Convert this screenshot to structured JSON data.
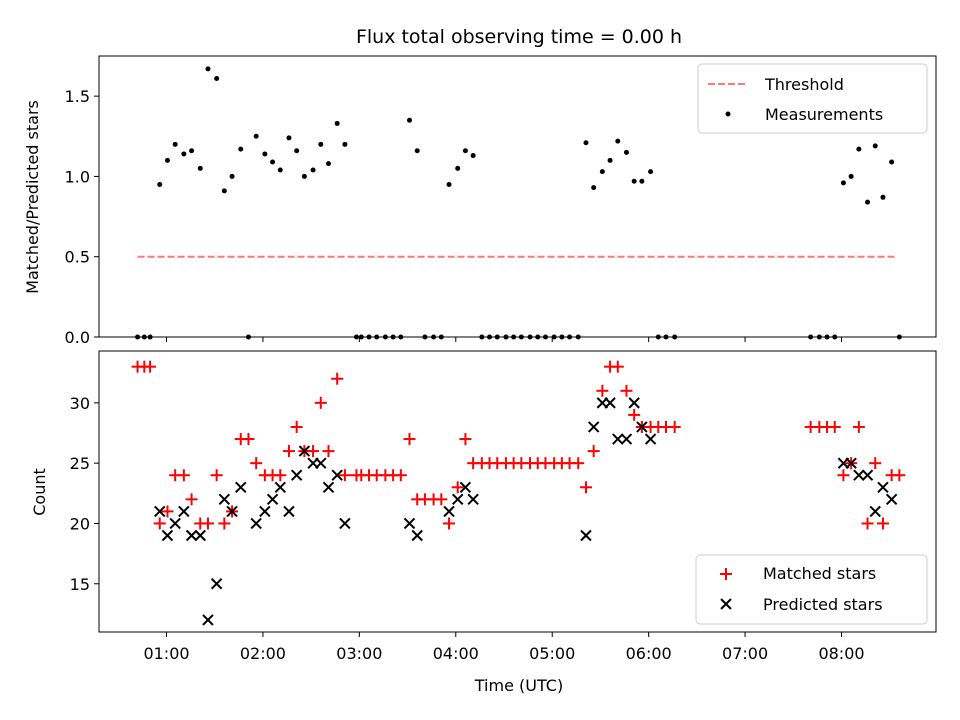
{
  "title": "Flux total observing time = 0.00 h",
  "xlabel": "Time (UTC)",
  "chart_data": [
    {
      "type": "scatter",
      "ylabel": "Matched/Predicted stars",
      "xlim": [
        0.3,
        8.98
      ],
      "ylim": [
        0,
        1.75
      ],
      "yticks": [
        0.0,
        0.5,
        1.0,
        1.5
      ],
      "yticklabels": [
        "0.0",
        "0.5",
        "1.0",
        "1.5"
      ],
      "legend_position": "top-right",
      "threshold": {
        "name": "Threshold",
        "value": 0.5,
        "x_range": [
          0.7,
          8.58
        ],
        "color": "#ff7777"
      },
      "series": [
        {
          "name": "Measurements",
          "color": "#000000",
          "x": [
            0.7,
            0.77,
            0.83,
            0.93,
            1.01,
            1.09,
            1.18,
            1.26,
            1.35,
            1.43,
            1.52,
            1.6,
            1.68,
            1.77,
            1.85,
            1.93,
            2.02,
            2.1,
            2.18,
            2.27,
            2.35,
            2.43,
            2.52,
            2.6,
            2.68,
            2.77,
            2.85,
            2.97,
            3.02,
            3.1,
            3.18,
            3.27,
            3.35,
            3.43,
            3.52,
            3.6,
            3.68,
            3.77,
            3.85,
            3.93,
            4.02,
            4.1,
            4.18,
            4.27,
            4.35,
            4.43,
            4.52,
            4.6,
            4.68,
            4.77,
            4.85,
            4.93,
            5.02,
            5.1,
            5.18,
            5.27,
            5.35,
            5.43,
            5.52,
            5.6,
            5.68,
            5.77,
            5.85,
            5.93,
            6.02,
            6.1,
            6.18,
            6.27,
            7.68,
            7.77,
            7.85,
            7.93,
            8.02,
            8.1,
            8.18,
            8.27,
            8.35,
            8.43,
            8.52,
            8.6
          ],
          "y": [
            0,
            0,
            0,
            0.95,
            1.1,
            1.2,
            1.14,
            1.16,
            1.05,
            1.67,
            1.61,
            0.91,
            1.0,
            1.17,
            0,
            1.25,
            1.14,
            1.09,
            1.04,
            1.24,
            1.16,
            1.0,
            1.04,
            1.2,
            1.08,
            1.33,
            1.2,
            0,
            0,
            0,
            0,
            0,
            0,
            0,
            1.35,
            1.16,
            0,
            0,
            0,
            0.95,
            1.05,
            1.16,
            1.13,
            0,
            0,
            0,
            0,
            0,
            0,
            0,
            0,
            0,
            0,
            0,
            0,
            0,
            1.21,
            0.93,
            1.03,
            1.1,
            1.22,
            1.15,
            0.97,
            0.97,
            1.03,
            0,
            0,
            0,
            0,
            0,
            0,
            0,
            0.96,
            1.0,
            1.17,
            0.84,
            1.19,
            0.87,
            1.09,
            0
          ]
        }
      ]
    },
    {
      "type": "scatter",
      "ylabel": "Count",
      "xlim": [
        0.3,
        8.98
      ],
      "ylim": [
        11.0,
        34.3
      ],
      "yticks": [
        15,
        20,
        25,
        30
      ],
      "yticklabels": [
        "15",
        "20",
        "25",
        "30"
      ],
      "xticks": [
        1,
        2,
        3,
        4,
        5,
        6,
        7,
        8
      ],
      "xticklabels": [
        "01:00",
        "02:00",
        "03:00",
        "04:00",
        "05:00",
        "06:00",
        "07:00",
        "08:00"
      ],
      "legend_position": "bottom-right",
      "series": [
        {
          "name": "Matched stars",
          "marker": "+",
          "color": "#ff0000",
          "x": [
            0.7,
            0.77,
            0.83,
            0.93,
            1.01,
            1.09,
            1.18,
            1.26,
            1.35,
            1.43,
            1.52,
            1.6,
            1.68,
            1.77,
            1.85,
            1.93,
            2.02,
            2.1,
            2.18,
            2.27,
            2.35,
            2.43,
            2.52,
            2.6,
            2.68,
            2.77,
            2.85,
            2.97,
            3.02,
            3.1,
            3.18,
            3.27,
            3.35,
            3.43,
            3.52,
            3.6,
            3.68,
            3.77,
            3.85,
            3.93,
            4.02,
            4.1,
            4.18,
            4.27,
            4.35,
            4.43,
            4.52,
            4.6,
            4.68,
            4.77,
            4.85,
            4.93,
            5.02,
            5.1,
            5.18,
            5.27,
            5.35,
            5.43,
            5.52,
            5.6,
            5.68,
            5.77,
            5.85,
            5.93,
            6.02,
            6.1,
            6.18,
            6.27,
            7.68,
            7.77,
            7.85,
            7.93,
            8.02,
            8.1,
            8.18,
            8.27,
            8.35,
            8.43,
            8.52,
            8.6
          ],
          "y": [
            33,
            33,
            33,
            20,
            21,
            24,
            24,
            22,
            20,
            20,
            24,
            20,
            21,
            27,
            27,
            25,
            24,
            24,
            24,
            26,
            28,
            26,
            26,
            30,
            26,
            32,
            24,
            24,
            24,
            24,
            24,
            24,
            24,
            24,
            27,
            22,
            22,
            22,
            22,
            20,
            23,
            27,
            25,
            25,
            25,
            25,
            25,
            25,
            25,
            25,
            25,
            25,
            25,
            25,
            25,
            25,
            23,
            26,
            31,
            33,
            33,
            31,
            29,
            28,
            28,
            28,
            28,
            28,
            28,
            28,
            28,
            28,
            24,
            25,
            28,
            20,
            25,
            20,
            24,
            24
          ]
        },
        {
          "name": "Predicted stars",
          "marker": "x",
          "color": "#000000",
          "x": [
            0.93,
            1.01,
            1.09,
            1.18,
            1.26,
            1.35,
            1.43,
            1.52,
            1.6,
            1.68,
            1.77,
            1.93,
            2.02,
            2.1,
            2.18,
            2.27,
            2.35,
            2.43,
            2.52,
            2.6,
            2.68,
            2.77,
            2.85,
            3.52,
            3.6,
            3.93,
            4.02,
            4.1,
            4.18,
            5.35,
            5.43,
            5.52,
            5.6,
            5.68,
            5.77,
            5.85,
            5.93,
            6.02,
            8.02,
            8.1,
            8.18,
            8.27,
            8.35,
            8.43,
            8.52
          ],
          "y": [
            21,
            19,
            20,
            21,
            19,
            19,
            12,
            15,
            22,
            21,
            23,
            20,
            21,
            22,
            23,
            21,
            24,
            26,
            25,
            25,
            23,
            24,
            20,
            20,
            19,
            21,
            22,
            23,
            22,
            19,
            28,
            30,
            30,
            27,
            27,
            30,
            28,
            27,
            25,
            25,
            24,
            24,
            21,
            23,
            22
          ]
        }
      ]
    }
  ]
}
